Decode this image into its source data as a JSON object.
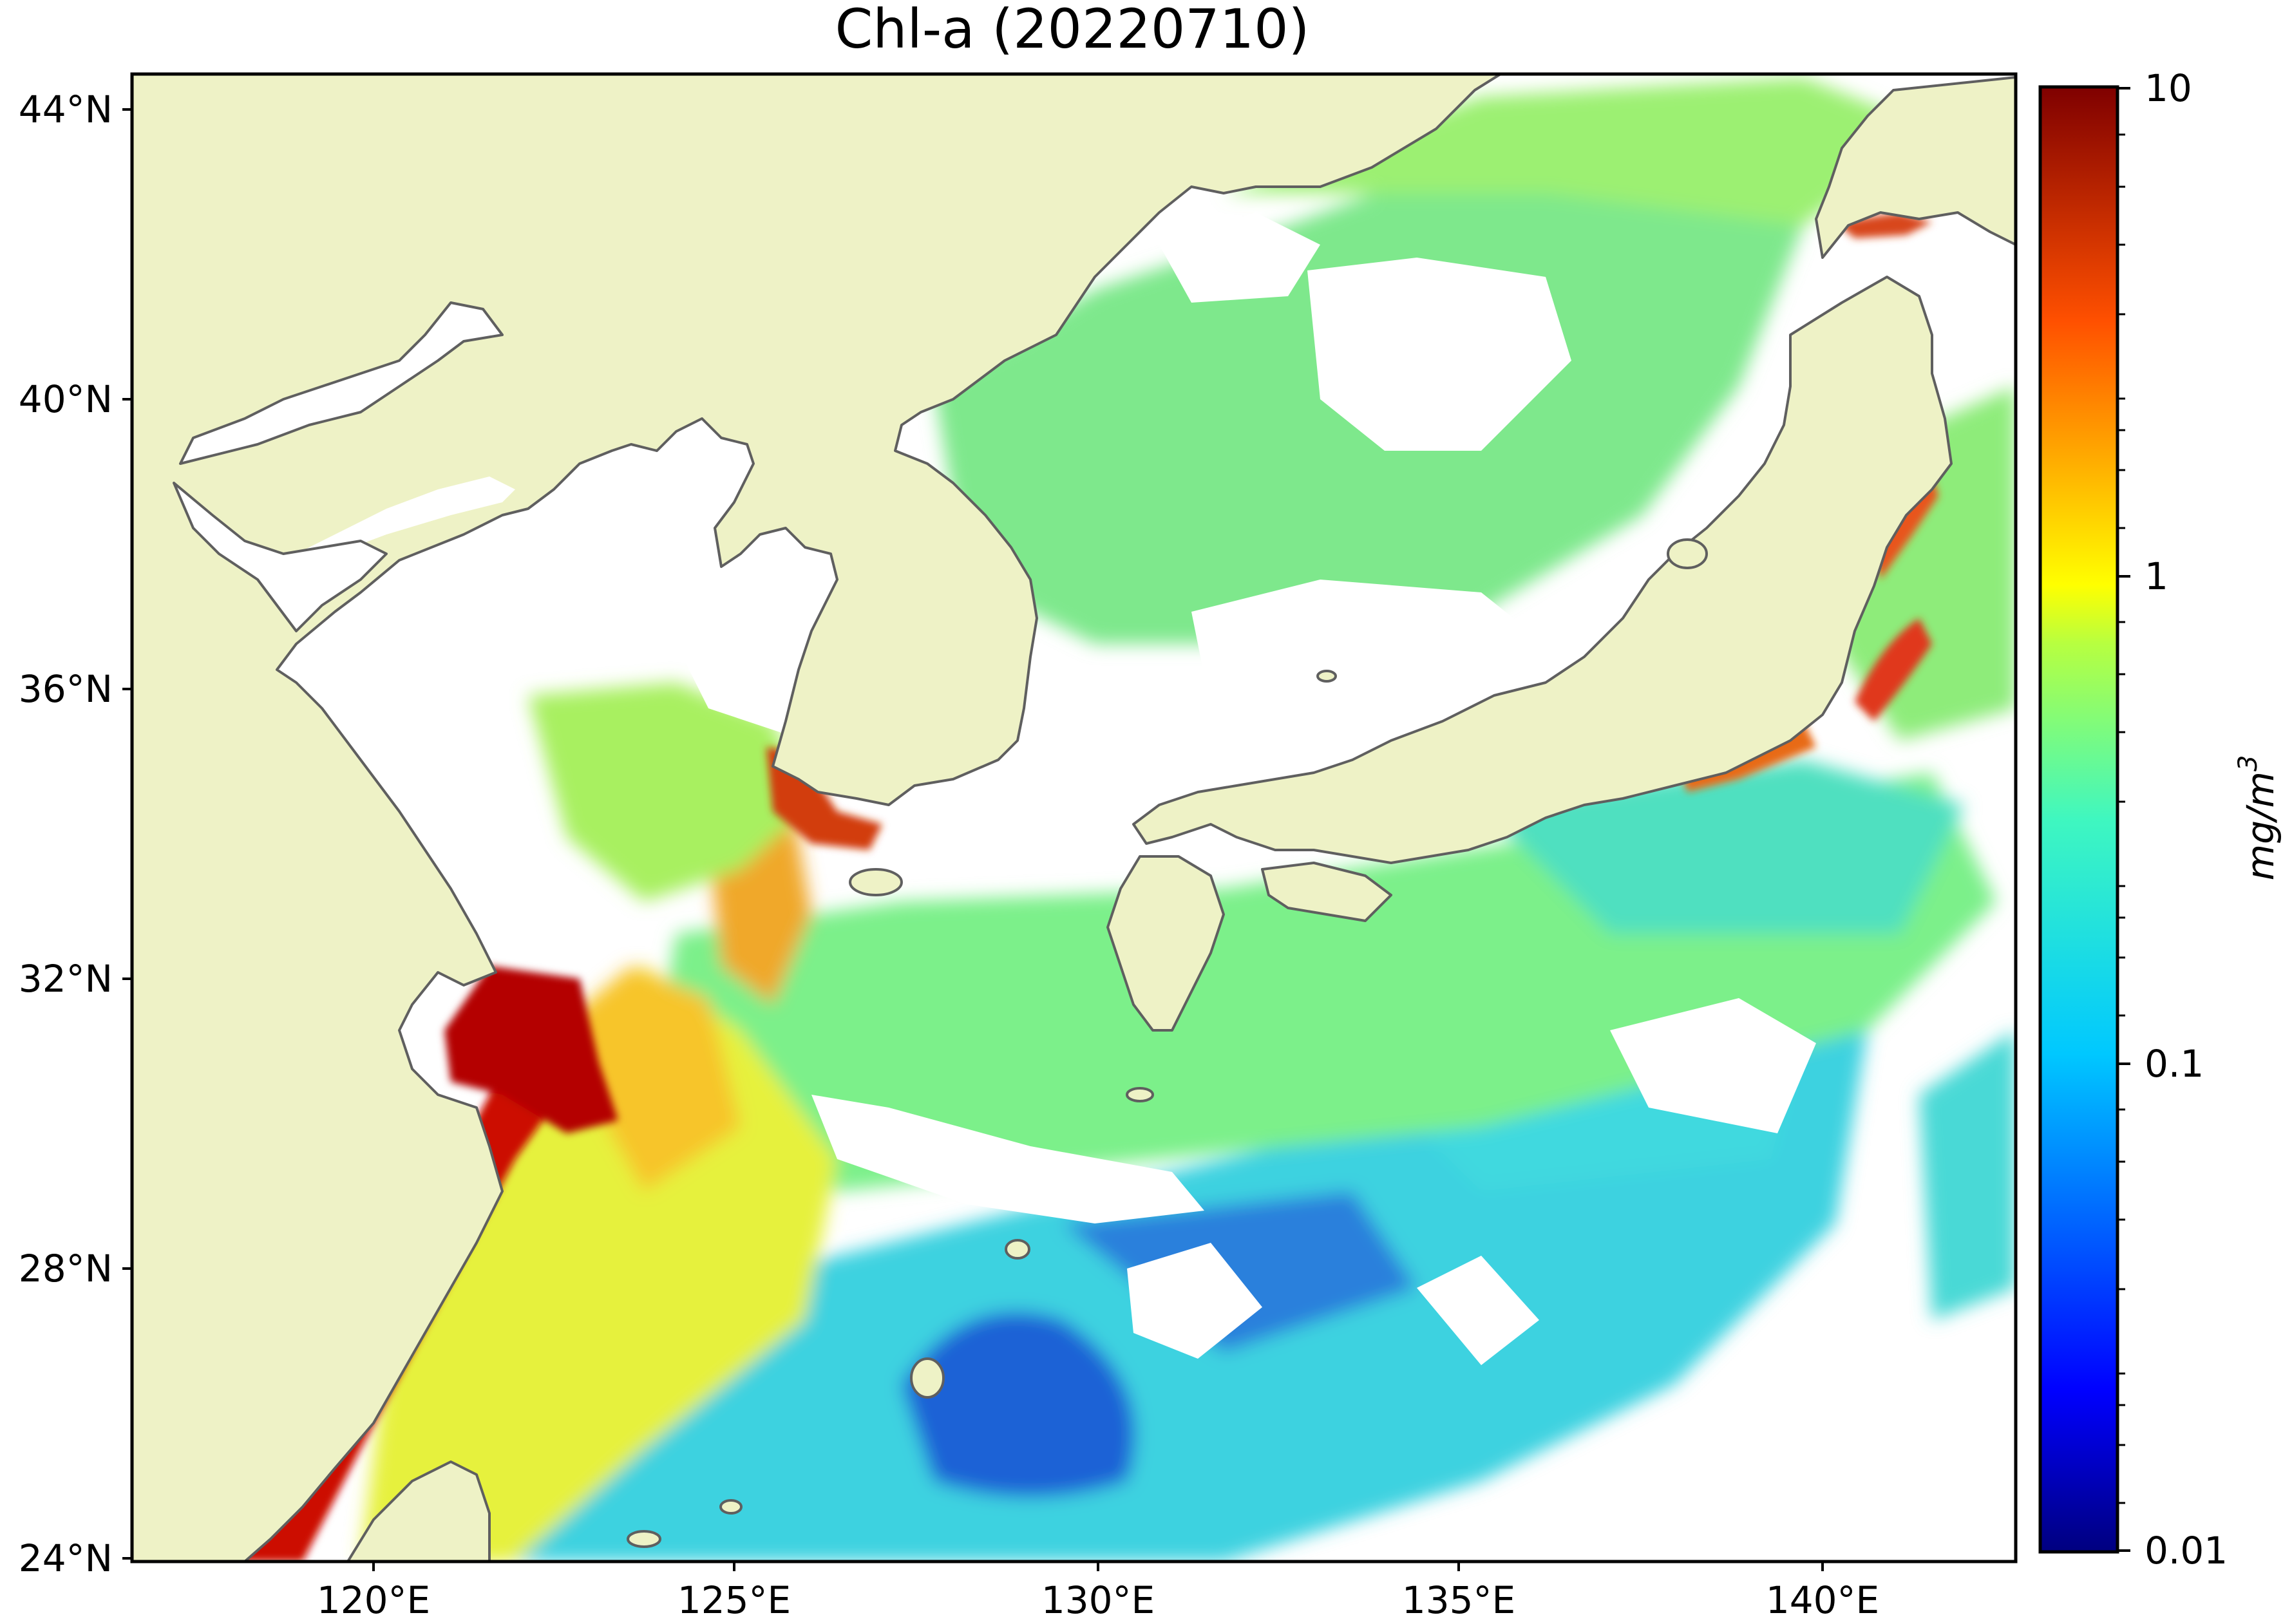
{
  "figure": {
    "title": "Chl-a (20220710)",
    "lat_ticks": [
      "44°N",
      "40°N",
      "36°N",
      "32°N",
      "28°N",
      "24°N"
    ],
    "lon_ticks": [
      "120°E",
      "125°E",
      "130°E",
      "135°E",
      "140°E"
    ],
    "colorbar": {
      "unit": "mg/m",
      "unit_sup": "3",
      "ticks": [
        "10",
        "1",
        "0.1",
        "0.01"
      ],
      "scale": "log",
      "range": [
        0.01,
        10
      ],
      "colormap": "jet"
    }
  },
  "colors": {
    "land": "#eef2c6",
    "coastline": "#5f5f5f",
    "cloud_mask": "#ffffff",
    "high_chl": "#c40000",
    "mid_chl": "#f5e11a",
    "low_chl": "#33d8e6",
    "very_low_chl": "#1240d0"
  }
}
